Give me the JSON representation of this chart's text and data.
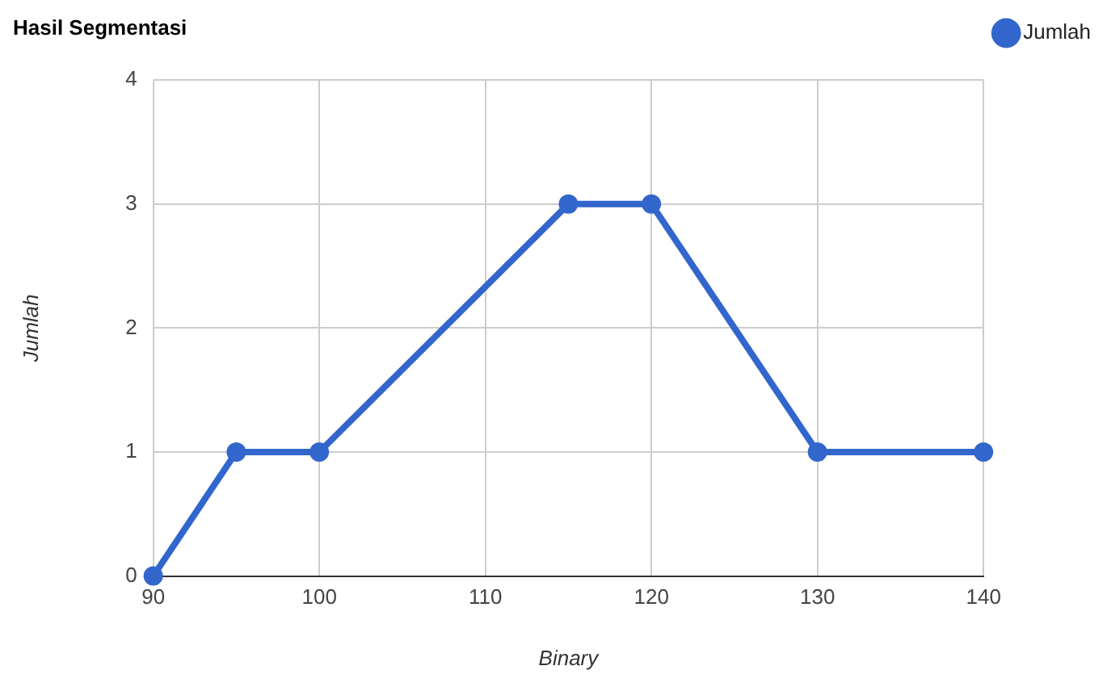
{
  "chart_data": {
    "type": "line",
    "title": "Hasil Segmentasi",
    "xlabel": "Binary",
    "ylabel": "Jumlah",
    "x": [
      90,
      95,
      100,
      115,
      120,
      130,
      140
    ],
    "series": [
      {
        "name": "Jumlah",
        "color": "#3366cc",
        "values": [
          0,
          1,
          1,
          3,
          3,
          1,
          1
        ]
      }
    ],
    "xlim": [
      90,
      140
    ],
    "xticks": [
      90,
      100,
      110,
      120,
      130,
      140
    ],
    "ylim": [
      0,
      4
    ],
    "yticks": [
      0,
      1,
      2,
      3,
      4
    ],
    "grid": true,
    "legend": "top right",
    "marker": "circle",
    "line_style": "solid"
  }
}
